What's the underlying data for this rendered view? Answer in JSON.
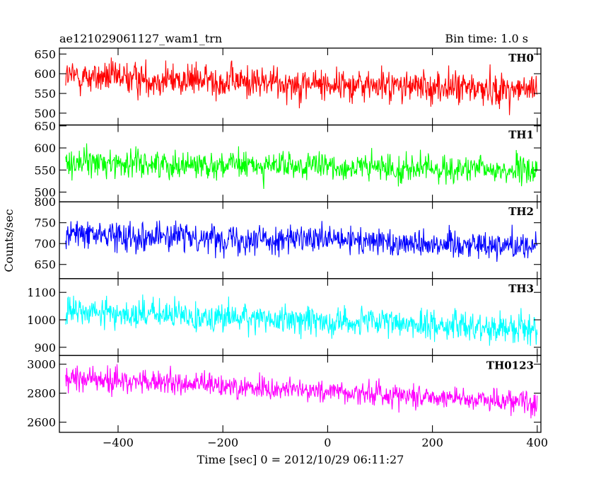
{
  "header": {
    "title": "ae121029061127_wam1_trn",
    "bin_time": "Bin time: 1.0 s"
  },
  "chart_data": {
    "type": "line",
    "xlabel": "Time [sec] 0 = 2012/10/29 06:11:27",
    "ylabel": "Counts/sec",
    "xlim": [
      -512,
      407
    ],
    "xticks": [
      -400,
      -200,
      0,
      200,
      400
    ],
    "x_start": -500,
    "x_end": 400,
    "panels": [
      {
        "name": "TH0",
        "color": "#ff0000",
        "ylim": [
          470,
          665
        ],
        "yticks": [
          500,
          550,
          600,
          650
        ],
        "mean_start": 593,
        "mean_end": 558,
        "spread": 30
      },
      {
        "name": "TH1",
        "color": "#00ff00",
        "ylim": [
          478,
          652
        ],
        "yticks": [
          500,
          550,
          600,
          650
        ],
        "mean_start": 568,
        "mean_end": 548,
        "spread": 22
      },
      {
        "name": "TH2",
        "color": "#0000ff",
        "ylim": [
          616,
          800
        ],
        "yticks": [
          650,
          700,
          750,
          800
        ],
        "mean_start": 723,
        "mean_end": 695,
        "spread": 24
      },
      {
        "name": "TH3",
        "color": "#00ffff",
        "ylim": [
          870,
          1150
        ],
        "yticks": [
          900,
          1000,
          1100
        ],
        "mean_start": 1030,
        "mean_end": 968,
        "spread": 38
      },
      {
        "name": "TH0123",
        "color": "#ff00ff",
        "ylim": [
          2530,
          3060
        ],
        "yticks": [
          2600,
          2800,
          3000
        ],
        "mean_start": 2905,
        "mean_end": 2740,
        "spread": 58
      }
    ]
  }
}
